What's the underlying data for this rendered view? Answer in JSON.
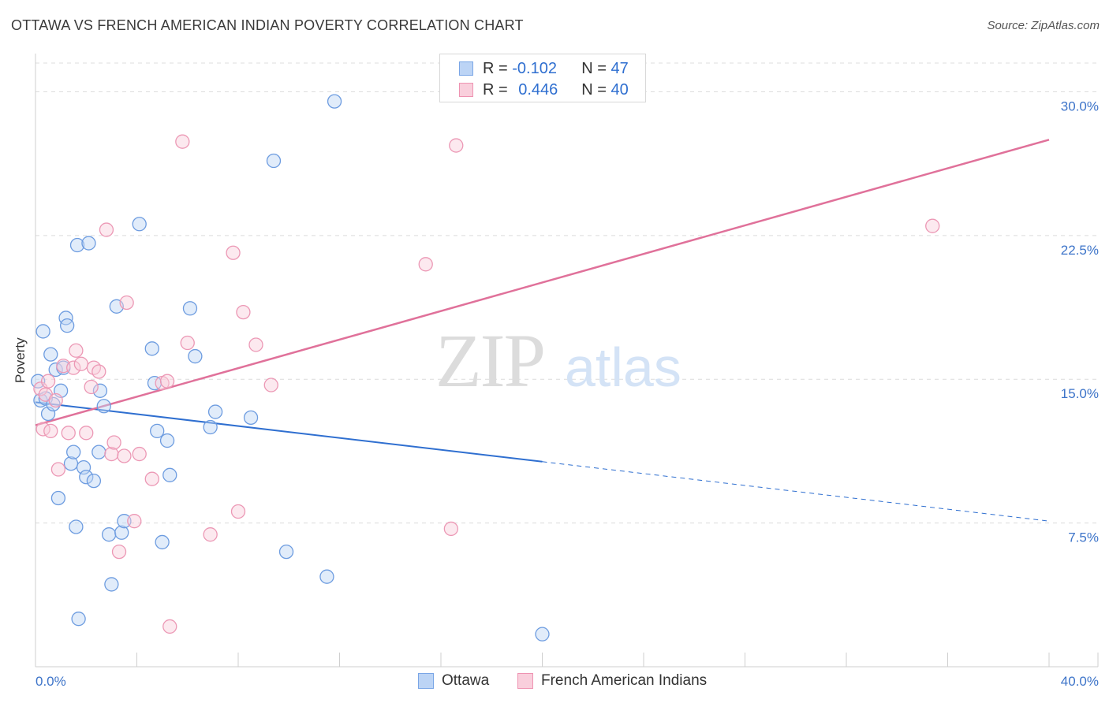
{
  "title": "OTTAWA VS FRENCH AMERICAN INDIAN POVERTY CORRELATION CHART",
  "source": "Source: ZipAtlas.com",
  "watermark": {
    "zip": "ZIP",
    "atlas": "atlas"
  },
  "legend": {
    "r_label": "R =",
    "n_label": "N =",
    "rows": [
      {
        "series": "Ottawa",
        "r": "-0.102",
        "n": "47"
      },
      {
        "series": "French American Indians",
        "r": "0.446",
        "n": "40"
      }
    ]
  },
  "chart_data": {
    "type": "scatter",
    "title": "OTTAWA VS FRENCH AMERICAN INDIAN POVERTY CORRELATION CHART",
    "xlabel": "",
    "ylabel": "Poverty",
    "xlim": [
      0,
      40
    ],
    "ylim": [
      0,
      31.5
    ],
    "x_tick_labels": [
      "0.0%",
      "40.0%"
    ],
    "y_ticks": [
      7.5,
      15.0,
      22.5,
      30.0
    ],
    "y_tick_labels": [
      "7.5%",
      "15.0%",
      "22.5%",
      "30.0%"
    ],
    "grid": true,
    "colors": {
      "Ottawa": "#2f6fd0",
      "French American Indians": "#e0719a"
    },
    "series": [
      {
        "name": "Ottawa",
        "trend": {
          "x0": 0,
          "y0": 13.8,
          "x1": 20,
          "y1": 10.7,
          "dash_to_x": 40,
          "dash_to_y": 7.6
        },
        "points": [
          [
            0.1,
            14.9
          ],
          [
            0.2,
            13.9
          ],
          [
            0.3,
            17.5
          ],
          [
            0.4,
            14.0
          ],
          [
            0.5,
            13.2
          ],
          [
            0.6,
            16.3
          ],
          [
            0.7,
            13.7
          ],
          [
            0.8,
            15.5
          ],
          [
            0.9,
            8.8
          ],
          [
            1.0,
            14.4
          ],
          [
            1.1,
            15.6
          ],
          [
            1.2,
            18.2
          ],
          [
            1.25,
            17.8
          ],
          [
            1.4,
            10.6
          ],
          [
            1.5,
            11.2
          ],
          [
            1.6,
            7.3
          ],
          [
            1.65,
            22.0
          ],
          [
            1.7,
            2.5
          ],
          [
            1.9,
            10.4
          ],
          [
            2.0,
            9.9
          ],
          [
            2.1,
            22.1
          ],
          [
            2.3,
            9.7
          ],
          [
            2.5,
            11.2
          ],
          [
            2.55,
            14.4
          ],
          [
            2.7,
            13.6
          ],
          [
            2.9,
            6.9
          ],
          [
            3.0,
            4.3
          ],
          [
            3.2,
            18.8
          ],
          [
            3.4,
            7.0
          ],
          [
            3.5,
            7.6
          ],
          [
            4.1,
            23.1
          ],
          [
            4.6,
            16.6
          ],
          [
            4.7,
            14.8
          ],
          [
            4.8,
            12.3
          ],
          [
            5.0,
            6.5
          ],
          [
            5.2,
            11.8
          ],
          [
            5.3,
            10.0
          ],
          [
            6.1,
            18.7
          ],
          [
            6.3,
            16.2
          ],
          [
            6.9,
            12.5
          ],
          [
            7.1,
            13.3
          ],
          [
            8.5,
            13.0
          ],
          [
            9.4,
            26.4
          ],
          [
            9.9,
            6.0
          ],
          [
            11.5,
            4.7
          ],
          [
            11.8,
            29.5
          ],
          [
            20.0,
            1.7
          ]
        ]
      },
      {
        "name": "French American Indians",
        "trend": {
          "x0": 0,
          "y0": 12.6,
          "x1": 40,
          "y1": 27.5
        },
        "points": [
          [
            0.2,
            14.5
          ],
          [
            0.3,
            12.4
          ],
          [
            0.4,
            14.2
          ],
          [
            0.5,
            14.9
          ],
          [
            0.6,
            12.3
          ],
          [
            0.8,
            13.9
          ],
          [
            0.9,
            10.3
          ],
          [
            1.1,
            15.7
          ],
          [
            1.3,
            12.2
          ],
          [
            1.5,
            15.6
          ],
          [
            1.6,
            16.5
          ],
          [
            1.8,
            15.8
          ],
          [
            2.0,
            12.2
          ],
          [
            2.2,
            14.6
          ],
          [
            2.3,
            15.6
          ],
          [
            2.5,
            15.4
          ],
          [
            2.8,
            22.8
          ],
          [
            3.0,
            11.1
          ],
          [
            3.1,
            11.7
          ],
          [
            3.3,
            6.0
          ],
          [
            3.5,
            11.0
          ],
          [
            3.6,
            19.0
          ],
          [
            3.9,
            7.6
          ],
          [
            4.1,
            11.1
          ],
          [
            4.6,
            9.8
          ],
          [
            5.0,
            14.8
          ],
          [
            5.2,
            14.9
          ],
          [
            5.3,
            2.1
          ],
          [
            5.8,
            27.4
          ],
          [
            6.0,
            16.9
          ],
          [
            6.9,
            6.9
          ],
          [
            7.8,
            21.6
          ],
          [
            8.0,
            8.1
          ],
          [
            8.2,
            18.5
          ],
          [
            8.7,
            16.8
          ],
          [
            9.3,
            14.7
          ],
          [
            15.4,
            21.0
          ],
          [
            16.4,
            7.2
          ],
          [
            16.6,
            27.2
          ],
          [
            35.4,
            23.0
          ]
        ]
      }
    ]
  }
}
